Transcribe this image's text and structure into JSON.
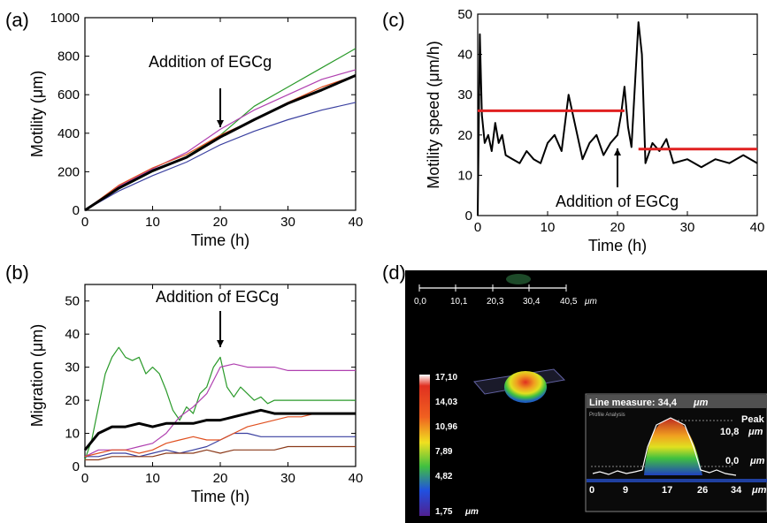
{
  "panels": {
    "a": "(a)",
    "b": "(b)",
    "c": "(c)",
    "d": "(d)"
  },
  "chart_data": [
    {
      "id": "a",
      "type": "line",
      "xlabel": "Time (h)",
      "ylabel": "Motility (μm)",
      "xlim": [
        0,
        40
      ],
      "ylim": [
        0,
        1000
      ],
      "xticks": [
        "0",
        "10",
        "20",
        "30",
        "40"
      ],
      "yticks": [
        "0",
        "200",
        "400",
        "600",
        "800",
        "1000"
      ],
      "annotation": "Addition of EGCg",
      "annotation_x": 20,
      "series": [
        {
          "color": "#2a9a2a",
          "x": [
            0,
            5,
            10,
            15,
            20,
            25,
            30,
            35,
            40
          ],
          "y": [
            0,
            110,
            200,
            280,
            390,
            540,
            640,
            740,
            840
          ]
        },
        {
          "color": "#b040b0",
          "x": [
            0,
            5,
            10,
            15,
            20,
            25,
            30,
            35,
            40
          ],
          "y": [
            0,
            125,
            215,
            300,
            420,
            520,
            600,
            680,
            730
          ]
        },
        {
          "color": "#e05020",
          "x": [
            0,
            5,
            10,
            15,
            20,
            25,
            30,
            35,
            40
          ],
          "y": [
            0,
            130,
            220,
            290,
            390,
            470,
            560,
            640,
            700
          ]
        },
        {
          "color": "#3a40a0",
          "x": [
            0,
            5,
            10,
            15,
            20,
            25,
            30,
            35,
            40
          ],
          "y": [
            0,
            100,
            180,
            250,
            340,
            410,
            470,
            520,
            560
          ]
        },
        {
          "color": "#000000",
          "width": 3,
          "x": [
            0,
            5,
            10,
            15,
            20,
            25,
            30,
            35,
            40
          ],
          "y": [
            0,
            115,
            205,
            275,
            380,
            470,
            555,
            625,
            700
          ]
        }
      ]
    },
    {
      "id": "b",
      "type": "line",
      "xlabel": "Time (h)",
      "ylabel": "Migration (μm)",
      "xlim": [
        0,
        40
      ],
      "ylim": [
        0,
        55
      ],
      "xticks": [
        "0",
        "10",
        "20",
        "30",
        "40"
      ],
      "yticks": [
        "0",
        "10",
        "20",
        "30",
        "40",
        "50"
      ],
      "annotation": "Addition of EGCg",
      "annotation_x": 20,
      "series": [
        {
          "color": "#2a9a2a",
          "x": [
            0,
            1,
            2,
            3,
            4,
            5,
            6,
            7,
            8,
            9,
            10,
            11,
            12,
            13,
            14,
            15,
            16,
            17,
            18,
            19,
            20,
            21,
            22,
            23,
            24,
            25,
            26,
            27,
            28,
            29,
            30,
            32,
            34,
            36,
            38,
            40
          ],
          "y": [
            2,
            8,
            18,
            28,
            33,
            36,
            33,
            32,
            33,
            28,
            30,
            28,
            23,
            17,
            14,
            18,
            16,
            22,
            24,
            30,
            33,
            24,
            21,
            24,
            22,
            20,
            21,
            19,
            20,
            20,
            20,
            20,
            20,
            20,
            20,
            20
          ]
        },
        {
          "color": "#b040b0",
          "x": [
            0,
            2,
            4,
            6,
            8,
            10,
            12,
            14,
            16,
            18,
            20,
            22,
            24,
            26,
            28,
            30,
            32,
            34,
            36,
            38,
            40
          ],
          "y": [
            3,
            5,
            5,
            5,
            6,
            7,
            10,
            15,
            18,
            22,
            30,
            31,
            30,
            30,
            30,
            29,
            29,
            29,
            29,
            29,
            29
          ]
        },
        {
          "color": "#3a40a0",
          "x": [
            0,
            2,
            4,
            6,
            8,
            10,
            12,
            14,
            16,
            18,
            20,
            22,
            24,
            26,
            28,
            30,
            32,
            34,
            36,
            38,
            40
          ],
          "y": [
            3,
            3,
            4,
            4,
            3,
            4,
            5,
            4,
            5,
            6,
            8,
            10,
            10,
            9,
            9,
            9,
            9,
            9,
            9,
            9,
            9
          ]
        },
        {
          "color": "#e05020",
          "x": [
            0,
            2,
            4,
            6,
            8,
            10,
            12,
            14,
            16,
            18,
            20,
            22,
            24,
            26,
            28,
            30,
            32,
            34,
            36,
            38,
            40
          ],
          "y": [
            3,
            4,
            5,
            5,
            4,
            5,
            7,
            8,
            9,
            8,
            8,
            10,
            12,
            13,
            14,
            15,
            15,
            16,
            16,
            16,
            16
          ]
        },
        {
          "color": "#8b3a1a",
          "x": [
            0,
            2,
            4,
            6,
            8,
            10,
            12,
            14,
            16,
            18,
            20,
            22,
            24,
            26,
            28,
            30,
            32,
            34,
            36,
            38,
            40
          ],
          "y": [
            2,
            2,
            3,
            3,
            3,
            3,
            4,
            4,
            4,
            5,
            4,
            5,
            5,
            5,
            5,
            6,
            6,
            6,
            6,
            6,
            6
          ]
        },
        {
          "color": "#000000",
          "width": 3,
          "x": [
            0,
            2,
            4,
            6,
            8,
            10,
            12,
            14,
            16,
            18,
            20,
            22,
            24,
            26,
            28,
            30,
            32,
            34,
            36,
            38,
            40
          ],
          "y": [
            5,
            10,
            12,
            12,
            13,
            12,
            13,
            13,
            13,
            14,
            14,
            15,
            16,
            17,
            16,
            16,
            16,
            16,
            16,
            16,
            16
          ]
        }
      ]
    },
    {
      "id": "c",
      "type": "line",
      "xlabel": "Time (h)",
      "ylabel": "Motility speed (μm/h)",
      "xlim": [
        0,
        40
      ],
      "ylim": [
        0,
        50
      ],
      "xticks": [
        "0",
        "10",
        "20",
        "30",
        "40"
      ],
      "yticks": [
        "0",
        "10",
        "20",
        "30",
        "40",
        "50"
      ],
      "annotation": "Addition of EGCg",
      "annotation_x": 20,
      "series": [
        {
          "color": "#000000",
          "width": 2,
          "x": [
            0,
            0.3,
            0.6,
            1,
            1.5,
            2,
            2.5,
            3,
            3.5,
            4,
            5,
            6,
            7,
            8,
            9,
            10,
            11,
            12,
            13,
            14,
            15,
            16,
            17,
            18,
            19,
            20,
            20.5,
            21,
            21.5,
            22,
            23,
            23.5,
            24,
            25,
            26,
            27,
            28,
            30,
            32,
            34,
            36,
            38,
            40
          ],
          "y": [
            0,
            45,
            25,
            18,
            20,
            16,
            23,
            18,
            20,
            15,
            14,
            13,
            16,
            14,
            13,
            18,
            20,
            16,
            30,
            22,
            14,
            18,
            20,
            15,
            18,
            20,
            25,
            32,
            22,
            17,
            48,
            40,
            13,
            18,
            16,
            19,
            13,
            14,
            12,
            14,
            13,
            15,
            13
          ]
        },
        {
          "color": "#e02020",
          "width": 3,
          "x": [
            0,
            21
          ],
          "y": [
            26,
            26
          ]
        },
        {
          "color": "#e02020",
          "width": 3,
          "x": [
            23,
            40
          ],
          "y": [
            16.5,
            16.5
          ]
        }
      ]
    }
  ],
  "panel_d": {
    "scale_ticks": [
      "0,0",
      "10,1",
      "20,3",
      "30,4",
      "40,5"
    ],
    "scale_unit": "μm",
    "colorbar_labels": [
      "17,10",
      "14,03",
      "10,96",
      "7,89",
      "4,82",
      "1,75"
    ],
    "colorbar_unit": "μm",
    "inset_title": "Line measure: 34,4",
    "inset_title_unit": "μm",
    "inset_subtitle": "Profile Analysis",
    "inset_peak_label": "Peak",
    "inset_peak_value": "10,8",
    "inset_peak_unit": "μm",
    "inset_zero_value": "0,0",
    "inset_zero_unit": "μm",
    "inset_xticks": [
      "0",
      "9",
      "17",
      "26",
      "34"
    ],
    "inset_x_unit": "μm"
  }
}
